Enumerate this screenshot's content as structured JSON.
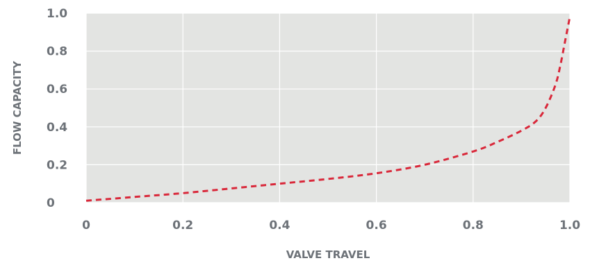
{
  "chart_data": {
    "type": "line",
    "title": "",
    "xlabel": "VALVE TRAVEL",
    "ylabel": "FLOW CAPACITY",
    "xlim": [
      0,
      1.0
    ],
    "ylim": [
      0,
      1.0
    ],
    "x_ticks": [
      "0",
      "0.2",
      "0.4",
      "0.6",
      "0.8",
      "1.0"
    ],
    "y_ticks": [
      "0",
      "0.2",
      "0.4",
      "0.6",
      "0.8",
      "1.0"
    ],
    "grid": true,
    "legend": "none",
    "series": [
      {
        "style": "dashed",
        "color": "#d9283a",
        "x": [
          0,
          0.1,
          0.2,
          0.3,
          0.4,
          0.5,
          0.6,
          0.7,
          0.8,
          0.85,
          0.9,
          0.93,
          0.95,
          0.97,
          0.98,
          0.99,
          1.0
        ],
        "y": [
          0.01,
          0.03,
          0.05,
          0.075,
          0.1,
          0.125,
          0.155,
          0.2,
          0.27,
          0.32,
          0.38,
          0.43,
          0.5,
          0.62,
          0.72,
          0.85,
          0.98
        ]
      }
    ]
  },
  "colors": {
    "plot_bg": "#e3e4e2",
    "grid": "#ffffff",
    "tick_text": "#6d7278",
    "axis_title": "#6d7278"
  }
}
